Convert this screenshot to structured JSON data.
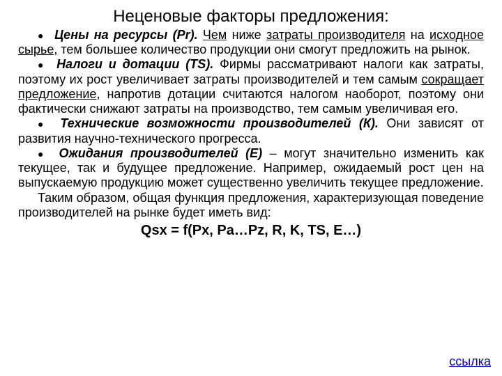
{
  "title": "Неценовые факторы предложения:",
  "bullet_glyph": "●",
  "items": [
    {
      "lead": "Цены на ресурсы (Pr).",
      "pre": " ",
      "u1": "Чем",
      "mid1": " ниже ",
      "u2": "затраты производителя",
      "mid2": " на ",
      "u3": "исходное сырье,",
      "tail": " тем большее количество продукции они смогут предложить на рынок."
    },
    {
      "lead": "Налоги и дотации (TS).",
      "pre": " Фирмы рассматривают налоги как затраты, поэтому их рост увеличивает затраты производителей и тем самым ",
      "u1": "сокращает предложение",
      "tail": ", напротив дотации считаются налогом наоборот, поэтому они фактически снижают затраты на производство, тем самым увеличивая его."
    },
    {
      "lead": "Технические возможности производителей (К).",
      "tail": " Они зависят от развития научно-технического прогресса."
    },
    {
      "lead": "Ожидания производителей (Е)",
      "tail": " – могут значительно изменить как текущее, так и будущее предложение. Например, ожидаемый рост цен на выпускаемую продукцию может существенно увеличить текущее предложение."
    }
  ],
  "closing": "Таким образом, общая функция предложения, характеризующая поведение производителей на рынке будет иметь вид:",
  "formula": "Qsx = f(Px, Pa…Pz, R, K, TS, E…)",
  "link": "ссылка",
  "colors": {
    "text": "#000000",
    "background": "#ffffff",
    "link": "#0000cc"
  },
  "fontsize": {
    "title": 24,
    "body": 18,
    "formula": 20
  }
}
